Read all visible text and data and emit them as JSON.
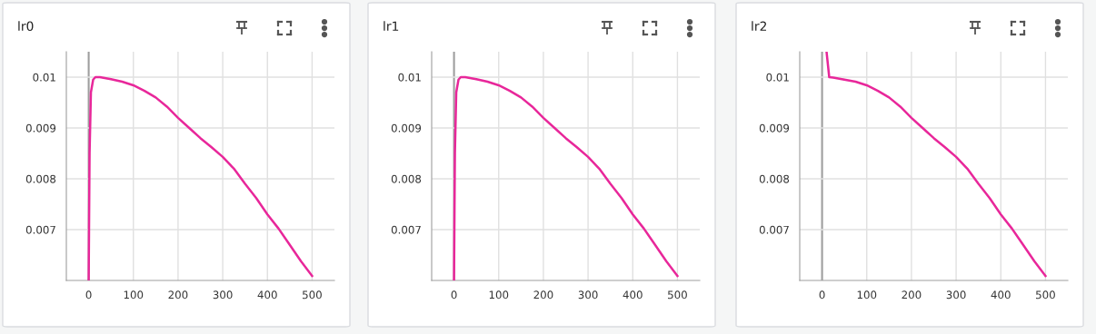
{
  "chart_data": [
    {
      "type": "line",
      "title": "lr0",
      "x": [
        0,
        2,
        5,
        10,
        15,
        25,
        50,
        75,
        100,
        125,
        150,
        175,
        200,
        225,
        250,
        275,
        300,
        325,
        350,
        375,
        400,
        425,
        450,
        475,
        500
      ],
      "series": [
        {
          "color": "#e8279a",
          "values": [
            0.006,
            0.0085,
            0.0097,
            0.00995,
            0.01,
            0.01,
            0.00996,
            0.00991,
            0.00984,
            0.00973,
            0.0096,
            0.00942,
            0.0092,
            0.009,
            0.0088,
            0.00862,
            0.00843,
            0.0082,
            0.0079,
            0.00762,
            0.0073,
            0.00702,
            0.0067,
            0.00638,
            0.00609
          ]
        }
      ],
      "xlim": [
        -50,
        550
      ],
      "ylim": [
        0.006,
        0.0105
      ],
      "xticks": [
        0,
        100,
        200,
        300,
        400,
        500
      ],
      "yticks": [
        0.007,
        0.008,
        0.009,
        0.01
      ],
      "grid": true,
      "legend": false,
      "marker": "none",
      "line_style": "solid"
    },
    {
      "type": "line",
      "title": "lr1",
      "x": [
        0,
        2,
        5,
        10,
        15,
        25,
        50,
        75,
        100,
        125,
        150,
        175,
        200,
        225,
        250,
        275,
        300,
        325,
        350,
        375,
        400,
        425,
        450,
        475,
        500
      ],
      "series": [
        {
          "color": "#e8279a",
          "values": [
            0.006,
            0.0085,
            0.0097,
            0.00995,
            0.01,
            0.01,
            0.00996,
            0.00991,
            0.00984,
            0.00973,
            0.0096,
            0.00942,
            0.0092,
            0.009,
            0.0088,
            0.00862,
            0.00843,
            0.0082,
            0.0079,
            0.00762,
            0.0073,
            0.00702,
            0.0067,
            0.00638,
            0.00609
          ]
        }
      ],
      "xlim": [
        -50,
        550
      ],
      "ylim": [
        0.006,
        0.0105
      ],
      "xticks": [
        0,
        100,
        200,
        300,
        400,
        500
      ],
      "yticks": [
        0.007,
        0.008,
        0.009,
        0.01
      ],
      "grid": true,
      "legend": false,
      "marker": "none",
      "line_style": "solid"
    },
    {
      "type": "line",
      "title": "lr2",
      "x": [
        10,
        16,
        25,
        50,
        75,
        100,
        125,
        150,
        175,
        200,
        225,
        250,
        275,
        300,
        325,
        350,
        375,
        400,
        425,
        450,
        475,
        500
      ],
      "series": [
        {
          "color": "#e8279a",
          "values": [
            0.0105,
            0.01,
            0.00999,
            0.00995,
            0.00991,
            0.00984,
            0.00973,
            0.0096,
            0.00942,
            0.0092,
            0.009,
            0.0088,
            0.00862,
            0.00843,
            0.0082,
            0.0079,
            0.00762,
            0.0073,
            0.00702,
            0.0067,
            0.00638,
            0.00609
          ]
        }
      ],
      "xlim": [
        -50,
        550
      ],
      "ylim": [
        0.006,
        0.0105
      ],
      "xticks": [
        0,
        100,
        200,
        300,
        400,
        500
      ],
      "yticks": [
        0.007,
        0.008,
        0.009,
        0.01
      ],
      "grid": true,
      "legend": false,
      "marker": "none",
      "line_style": "solid"
    }
  ]
}
